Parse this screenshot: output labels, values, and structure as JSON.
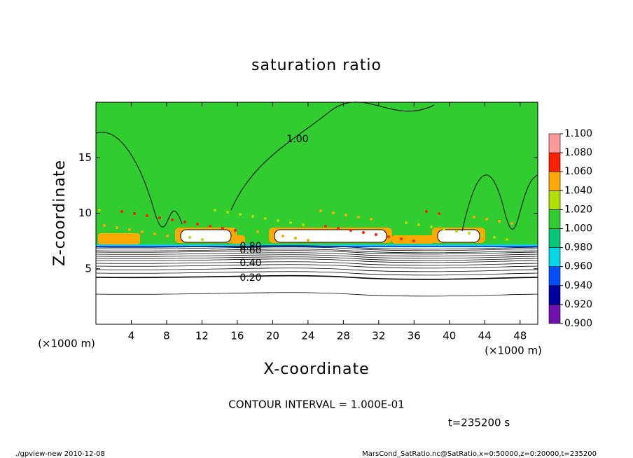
{
  "chart_data": {
    "type": "contour",
    "title": "saturation ratio",
    "x_label": "X-coordinate",
    "y_label": "Z-coordinate",
    "x_unit": "(×1000 m)",
    "x_unit_right": "(×1000 m)",
    "xlim": [
      0,
      50
    ],
    "xticks": [
      4,
      8,
      12,
      16,
      20,
      24,
      28,
      32,
      36,
      40,
      44,
      48
    ],
    "ylim": [
      0,
      20
    ],
    "yticks": [
      5,
      10,
      15
    ],
    "contour_labels": [
      {
        "value": 0.2,
        "label": "0.20"
      },
      {
        "value": 0.4,
        "label": "0.40"
      },
      {
        "value": 0.6,
        "label": "0.60"
      },
      {
        "value": 0.8,
        "label": "0.80"
      },
      {
        "value": 1.0,
        "label": "1.00"
      }
    ],
    "colorbar": {
      "ticks": [
        {
          "value": 0.9,
          "label": "0.900"
        },
        {
          "value": 0.92,
          "label": "0.920"
        },
        {
          "value": 0.94,
          "label": "0.940"
        },
        {
          "value": 0.96,
          "label": "0.960"
        },
        {
          "value": 0.98,
          "label": "0.980"
        },
        {
          "value": 1.0,
          "label": "1.000"
        },
        {
          "value": 1.02,
          "label": "1.020"
        },
        {
          "value": 1.04,
          "label": "1.040"
        },
        {
          "value": 1.06,
          "label": "1.060"
        },
        {
          "value": 1.08,
          "label": "1.080"
        },
        {
          "value": 1.1,
          "label": "1.100"
        }
      ],
      "colors": [
        "#7010b0",
        "#0000a0",
        "#0050ff",
        "#00d8e8",
        "#00c878",
        "#30cc30",
        "#b0e000",
        "#ffa800",
        "#ff2000",
        "#ff9898"
      ]
    },
    "contour_interval": "CONTOUR INTERVAL = 1.000E-01",
    "time_label": "t=235200 s",
    "footer_left": "./gpview-new  2010-12-08",
    "footer_right": "MarsCond_SatRatio.nc@SatRatio,x=0:50000,z=0:20000,t=235200"
  }
}
